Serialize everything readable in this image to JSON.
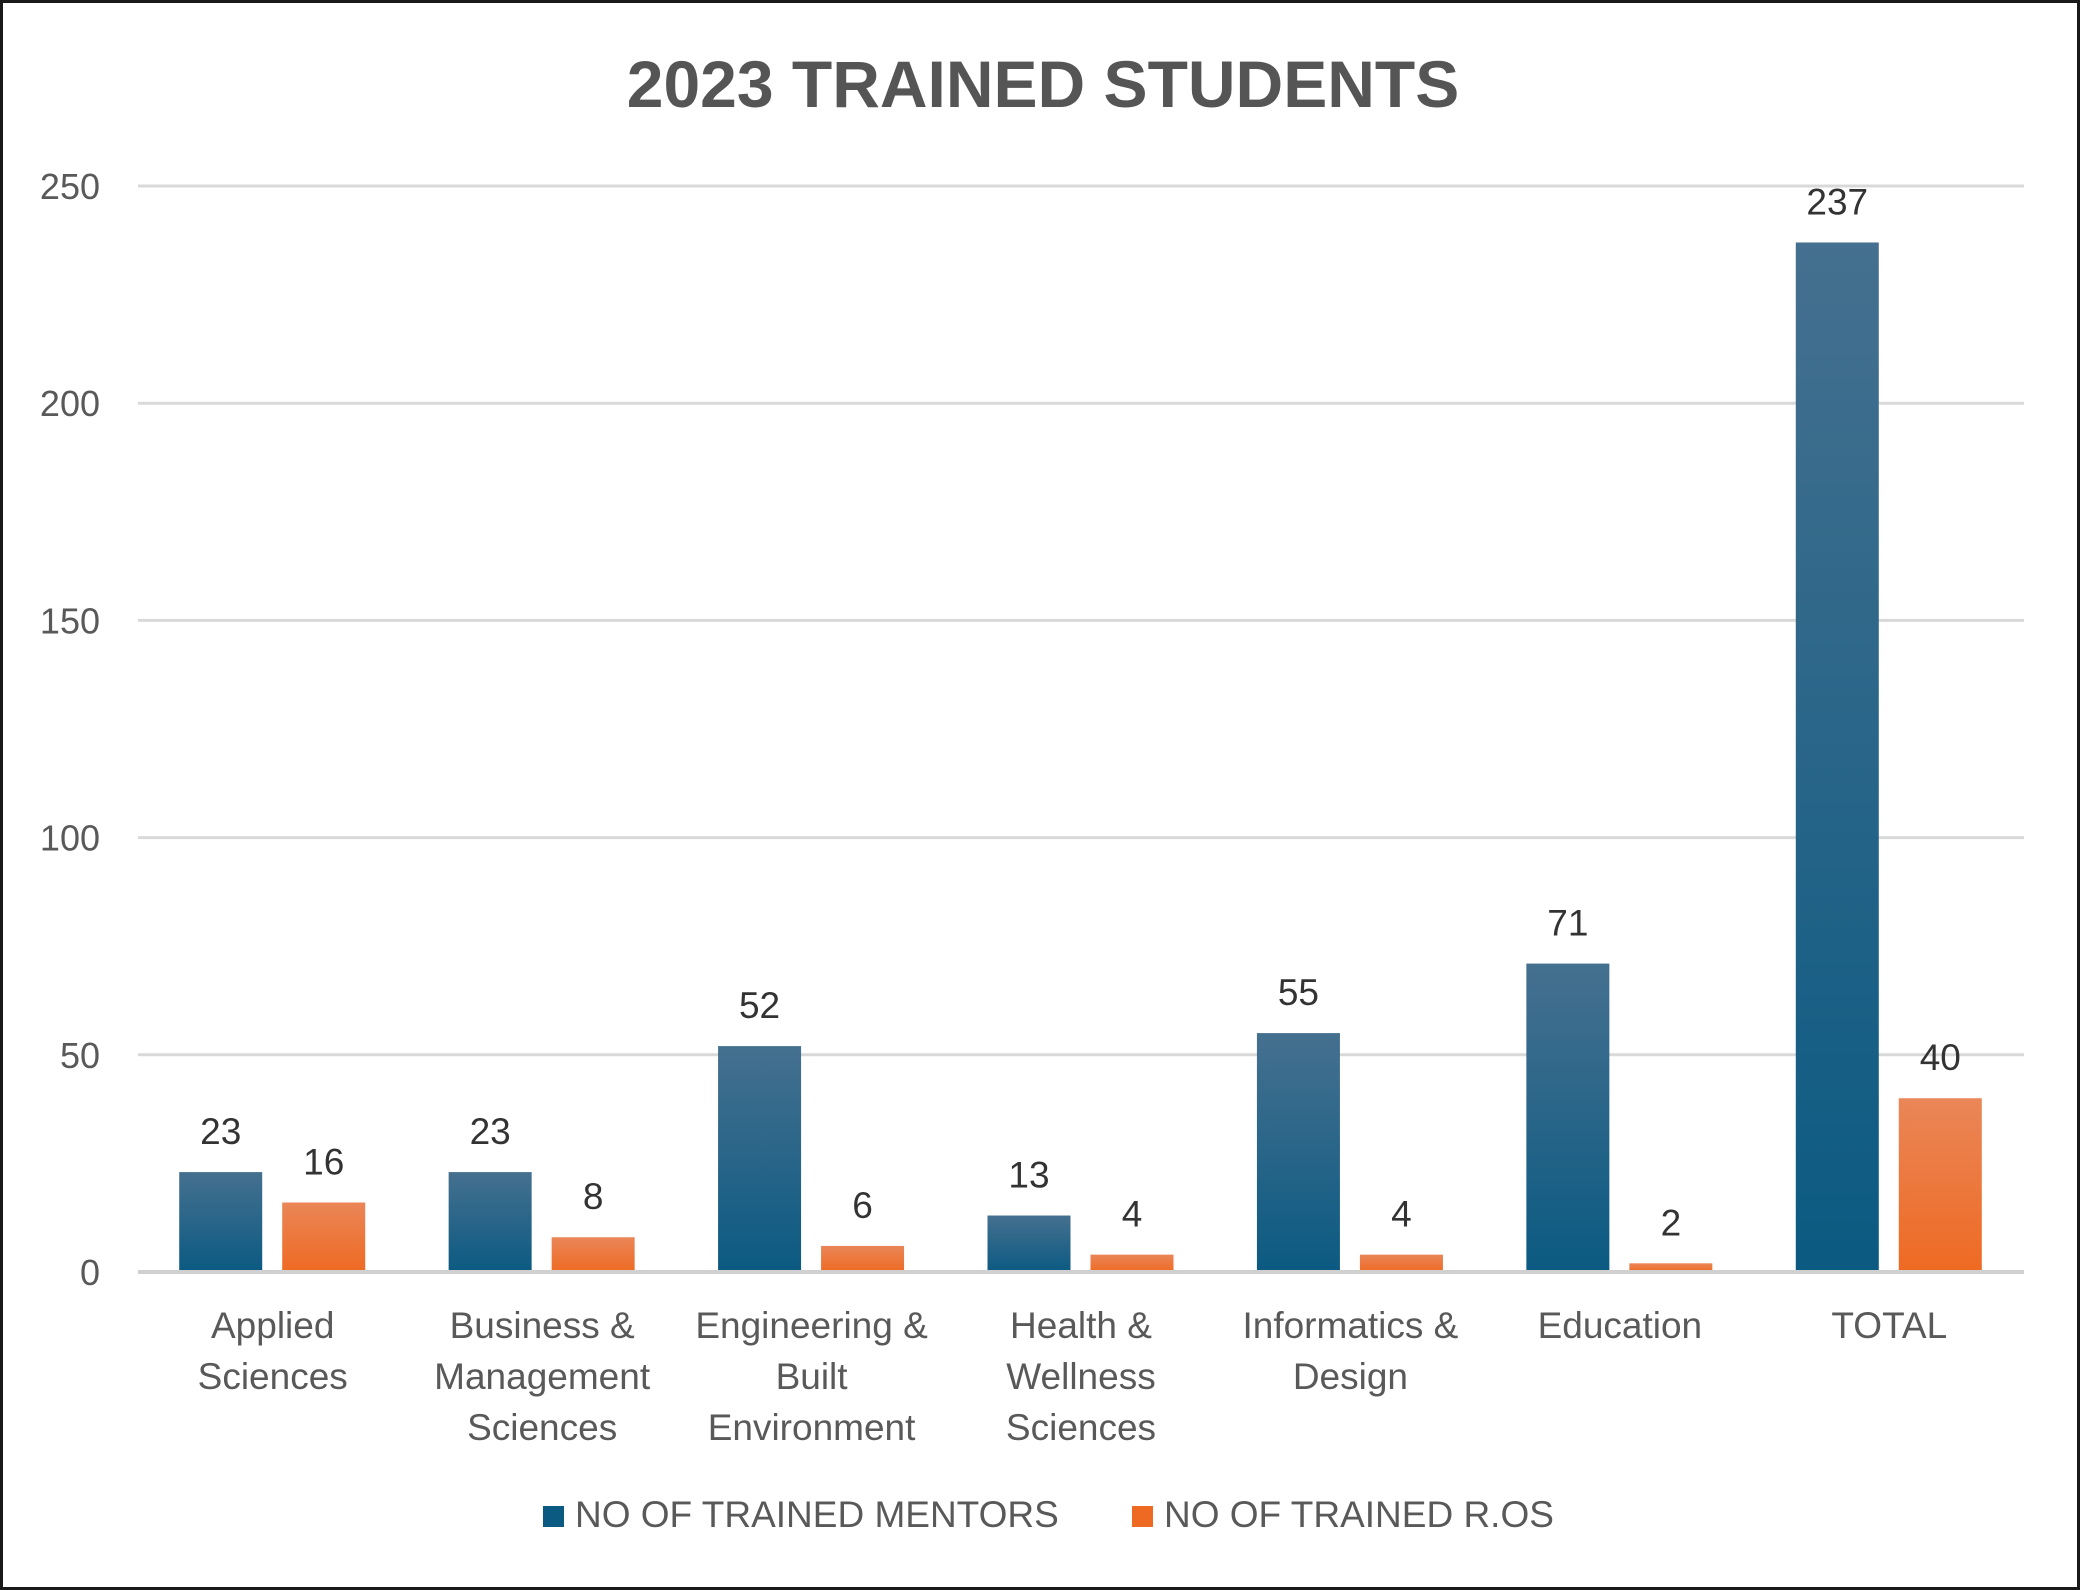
{
  "chart_data": {
    "type": "bar",
    "title": "2023 TRAINED STUDENTS",
    "categories": [
      [
        "Applied",
        "Sciences"
      ],
      [
        "Business &",
        "Management",
        "Sciences"
      ],
      [
        "Engineering &",
        "Built",
        "Environment"
      ],
      [
        "Health &",
        "Wellness",
        "Sciences"
      ],
      [
        "Informatics &",
        "Design"
      ],
      [
        "Education"
      ],
      [
        "TOTAL"
      ]
    ],
    "series": [
      {
        "name": "NO OF TRAINED MENTORS",
        "values": [
          23,
          23,
          52,
          13,
          55,
          71,
          237
        ],
        "color": "#0b5a82",
        "color_top": "#45708f"
      },
      {
        "name": "NO OF TRAINED R.OS",
        "values": [
          16,
          8,
          6,
          4,
          4,
          2,
          40
        ],
        "color": "#ee6a22",
        "color_top": "#ea8658"
      }
    ],
    "ylim": [
      0,
      250
    ],
    "yticks": [
      0,
      50,
      100,
      150,
      200,
      250
    ],
    "grid": true,
    "legend_position": "bottom"
  }
}
